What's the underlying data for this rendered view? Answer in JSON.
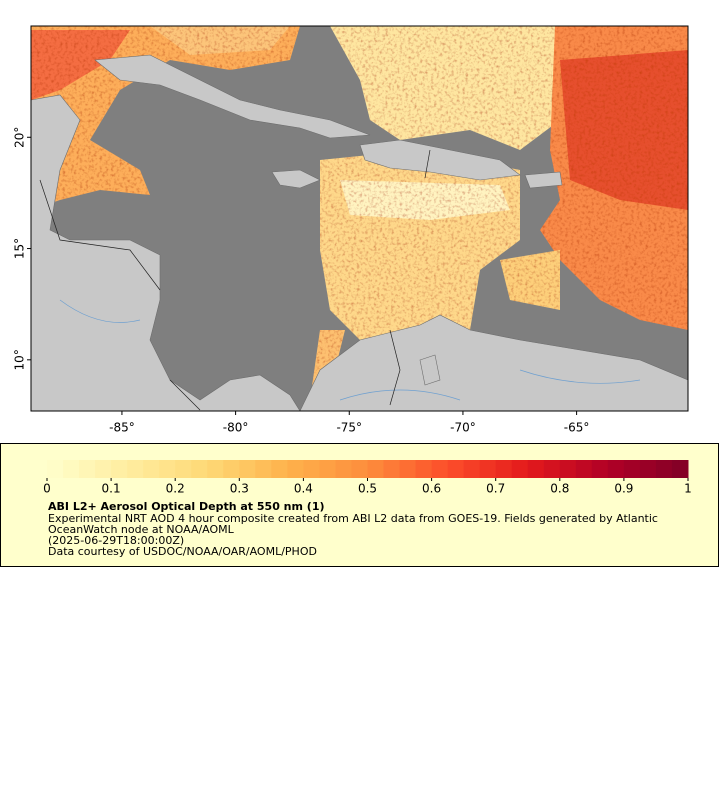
{
  "map": {
    "xlim": [
      -89,
      -60.1
    ],
    "ylim": [
      7.7,
      25
    ],
    "xticks": [
      {
        "value": -85,
        "label": "-85°"
      },
      {
        "value": -80,
        "label": "-80°"
      },
      {
        "value": -75,
        "label": "-75°"
      },
      {
        "value": -70,
        "label": "-70°"
      },
      {
        "value": -65,
        "label": "-65°"
      }
    ],
    "yticks": [
      {
        "value": 10,
        "label": "10°"
      },
      {
        "value": 15,
        "label": "15°"
      },
      {
        "value": 20,
        "label": "20°"
      }
    ]
  },
  "legend": {
    "colorbar": {
      "range": [
        0,
        1
      ],
      "ticks": [
        0,
        0.1,
        0.2,
        0.3,
        0.4,
        0.5,
        0.6,
        0.7,
        0.8,
        0.9,
        1
      ],
      "colors": [
        "#ffffcc",
        "#ffeda0",
        "#fed976",
        "#feb24c",
        "#fd8d3c",
        "#fc4e2a",
        "#e31a1c",
        "#b10026",
        "#800026"
      ]
    },
    "title": "ABI L2+ Aerosol Optical Depth at 550 nm (1)",
    "lines": [
      "Experimental NRT AOD 4 hour composite created from ABI L2 data from GOES-19. Fields generated by Atlantic",
      "OceanWatch node at NOAA/AOML",
      "(2025-06-29T18:00:00Z)",
      "Data courtesy of USDOC/NOAA/OAR/AOML/PHOD"
    ]
  }
}
